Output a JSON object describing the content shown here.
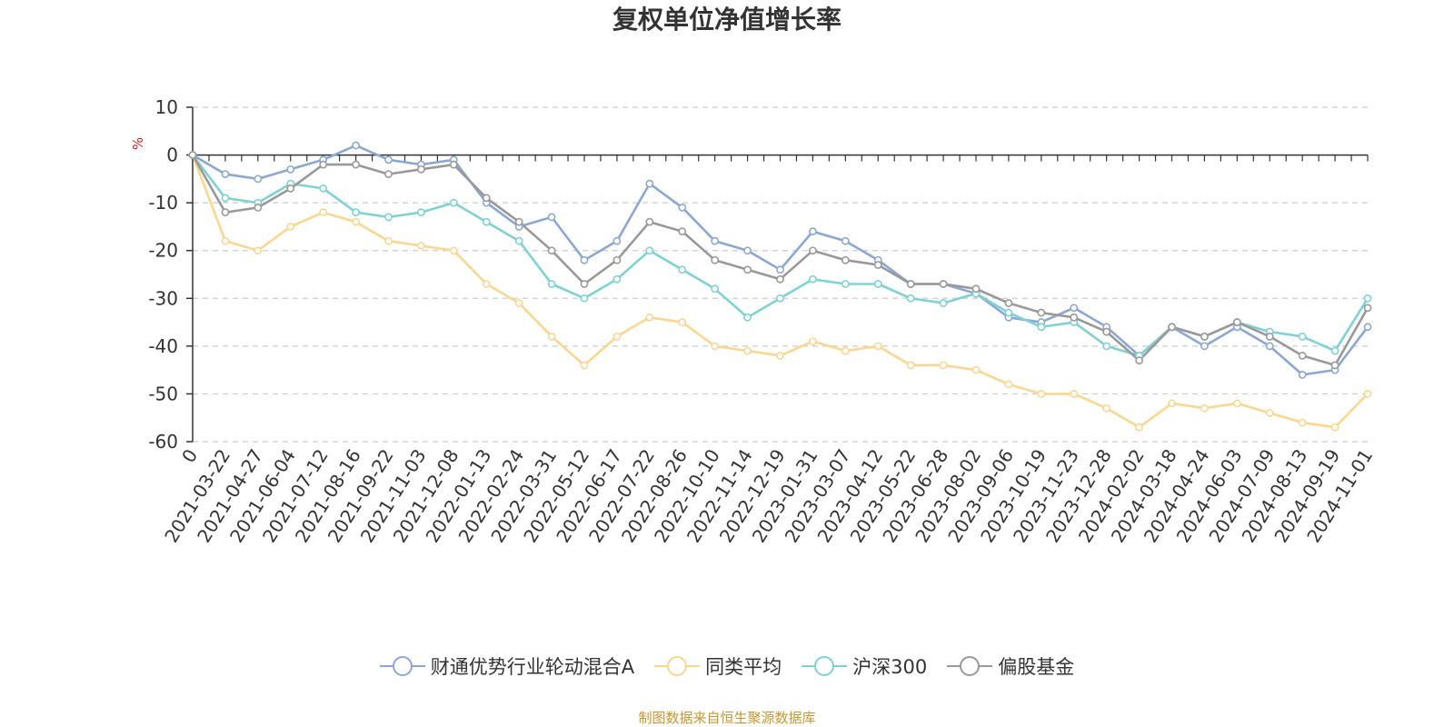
{
  "page_title": "复权单位净值增长率",
  "source_note": "制图数据来自恒生聚源数据库",
  "chart_data": {
    "type": "line",
    "title": "复权单位净值增长率",
    "xlabel": "",
    "ylabel": "%",
    "ylim": [
      -60,
      10
    ],
    "yticks": [
      10,
      0,
      -10,
      -20,
      -30,
      -40,
      -50,
      -60
    ],
    "grid": true,
    "legend_position": "bottom-center",
    "categories": [
      "0",
      "2021-03-22",
      "2021-04-27",
      "2021-06-04",
      "2021-07-12",
      "2021-08-16",
      "2021-09-22",
      "2021-11-03",
      "2021-12-08",
      "2022-01-13",
      "2022-02-24",
      "2022-03-31",
      "2022-05-12",
      "2022-06-17",
      "2022-07-22",
      "2022-08-26",
      "2022-10-10",
      "2022-11-14",
      "2022-12-19",
      "2023-01-31",
      "2023-03-07",
      "2023-04-12",
      "2023-05-22",
      "2023-06-28",
      "2023-08-02",
      "2023-09-06",
      "2023-10-19",
      "2023-11-23",
      "2023-12-28",
      "2024-02-02",
      "2024-03-18",
      "2024-04-24",
      "2024-06-03",
      "2024-07-09",
      "2024-08-13",
      "2024-09-19",
      "2024-11-01"
    ],
    "series": [
      {
        "name": "财通优势行业轮动混合A",
        "color": "#8aa7d6",
        "values": [
          0,
          -4,
          -5,
          -3,
          -1,
          2,
          -1,
          -2,
          -1,
          -10,
          -15,
          -13,
          -22,
          -18,
          -6,
          -11,
          -18,
          -20,
          -24,
          -16,
          -18,
          -22,
          -27,
          -27,
          -29,
          -34,
          -35,
          -32,
          -36,
          -42,
          -36,
          -40,
          -36,
          -40,
          -46,
          -45,
          -36
        ]
      },
      {
        "name": "同类平均",
        "color": "#fcd68f",
        "values": [
          0,
          -18,
          -20,
          -15,
          -12,
          -14,
          -18,
          -19,
          -20,
          -27,
          -31,
          -38,
          -44,
          -38,
          -34,
          -35,
          -40,
          -41,
          -42,
          -39,
          -41,
          -40,
          -44,
          -44,
          -45,
          -48,
          -50,
          -50,
          -53,
          -57,
          -52,
          -53,
          -52,
          -54,
          -56,
          -57,
          -50
        ]
      },
      {
        "name": "沪深300",
        "color": "#7dd3d3",
        "values": [
          0,
          -9,
          -10,
          -6,
          -7,
          -12,
          -13,
          -12,
          -10,
          -14,
          -18,
          -27,
          -30,
          -26,
          -20,
          -24,
          -28,
          -34,
          -30,
          -26,
          -27,
          -27,
          -30,
          -31,
          -29,
          -33,
          -36,
          -35,
          -40,
          -42,
          -36,
          -38,
          -35,
          -37,
          -38,
          -41,
          -30
        ]
      },
      {
        "name": "偏股基金",
        "color": "#999999",
        "values": [
          0,
          -12,
          -11,
          -7,
          -2,
          -2,
          -4,
          -3,
          -2,
          -9,
          -14,
          -20,
          -27,
          -22,
          -14,
          -16,
          -22,
          -24,
          -26,
          -20,
          -22,
          -23,
          -27,
          -27,
          -28,
          -31,
          -33,
          -34,
          -37,
          -43,
          -36,
          -38,
          -35,
          -38,
          -42,
          -44,
          -32
        ]
      }
    ]
  },
  "legend": [
    {
      "label": "财通优势行业轮动混合A",
      "color": "#8aa7d6"
    },
    {
      "label": "同类平均",
      "color": "#fcd68f"
    },
    {
      "label": "沪深300",
      "color": "#7dd3d3"
    },
    {
      "label": "偏股基金",
      "color": "#999999"
    }
  ]
}
